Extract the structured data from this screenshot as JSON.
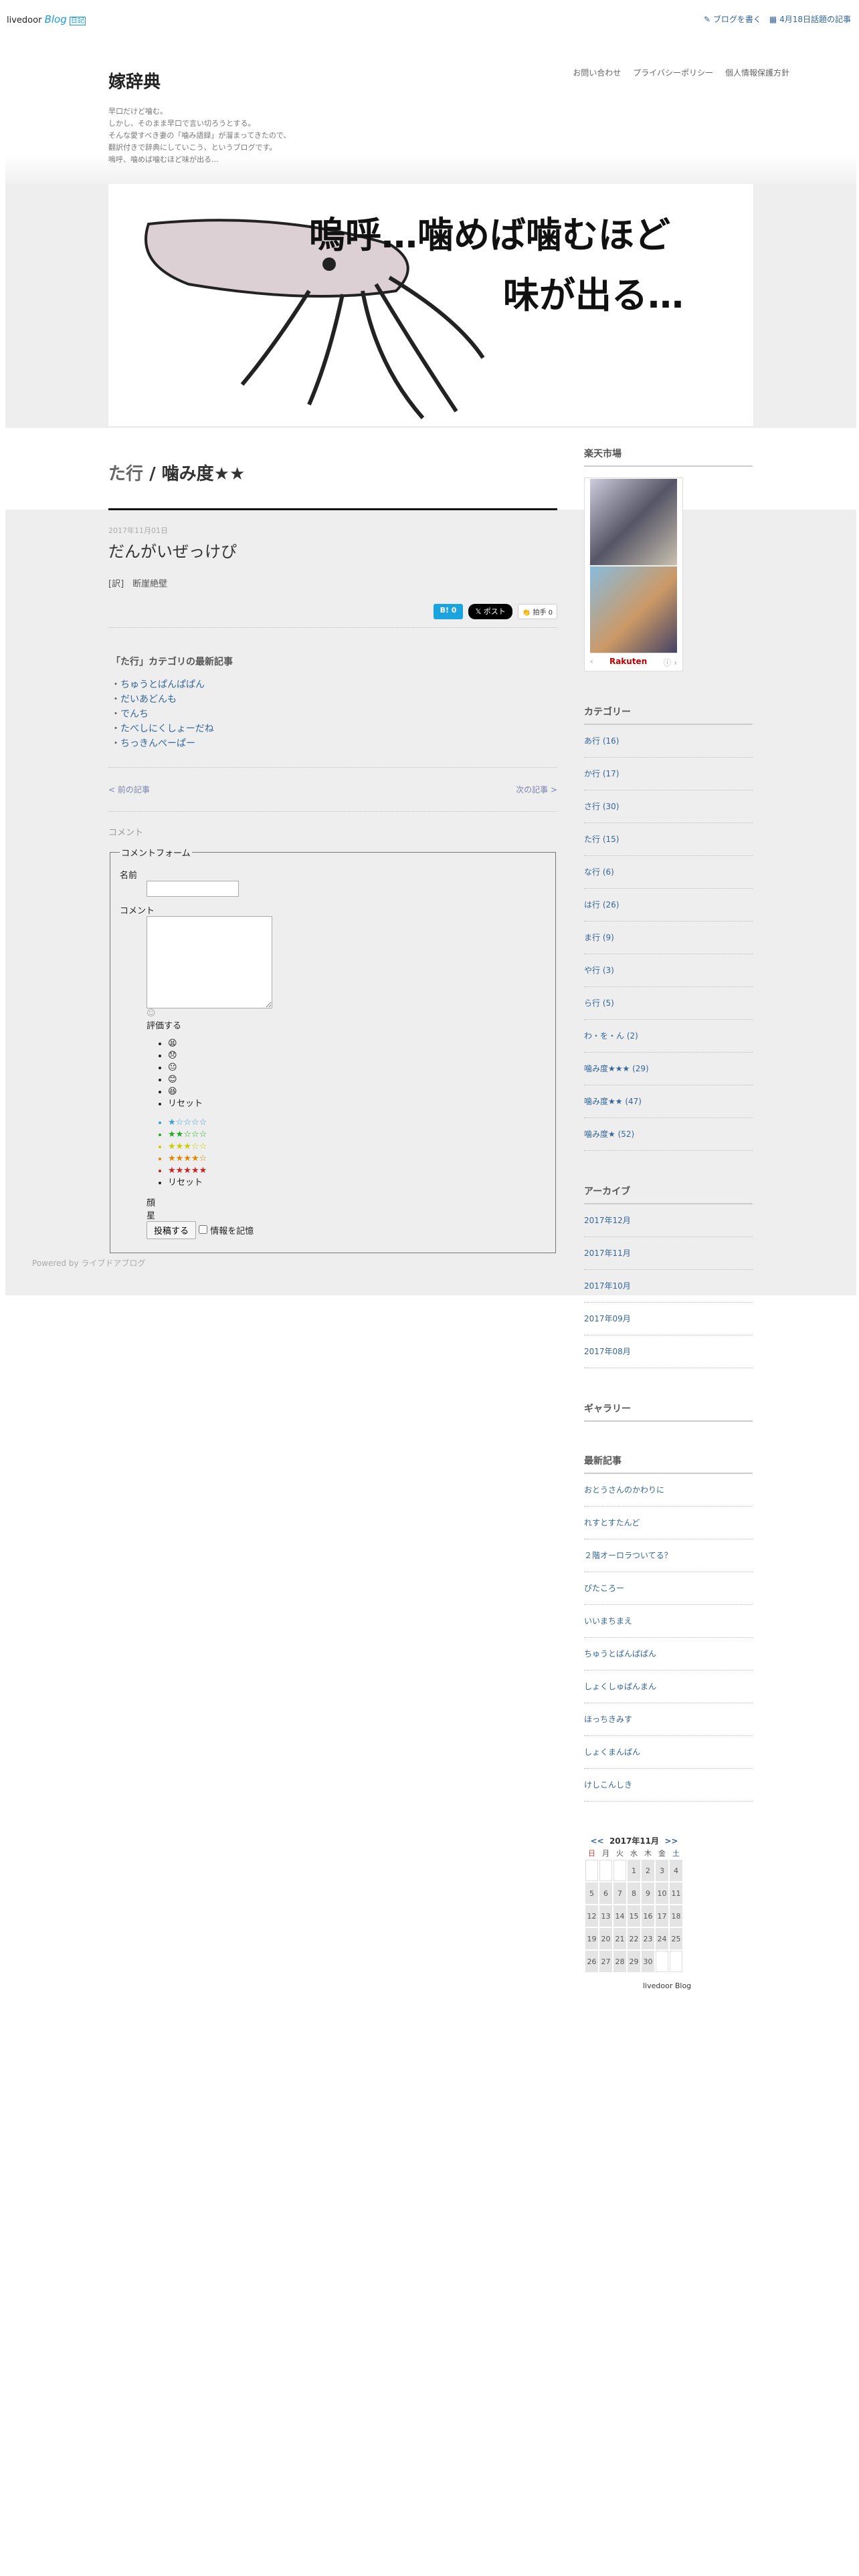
{
  "topbar": {
    "logo_brand": "livedoor",
    "logo_blog": "Blog",
    "logo_tag": "日記",
    "write": "ブログを書く",
    "topic": "4月18日話題の記事"
  },
  "header": {
    "title": "嫁辞典",
    "description": [
      "早口だけど噛む。",
      "しかし、そのまま早口で言い切ろうとする。",
      "そんな愛すべき妻の「噛み語録」が溜まってきたので、",
      "翻訳付きで辞典にしていこう、というブログです。",
      "嗚呼、噛めば噛むほど味が出る..."
    ],
    "nav": [
      "お問い合わせ",
      "プライバシーポリシー",
      "個人情報保護方針"
    ]
  },
  "banner": {
    "text_line1": "嗚呼…噛めば噛むほど",
    "text_line2": "味が出る…"
  },
  "main": {
    "category": "た行",
    "separator": "/",
    "subcategory": "噛み度★★",
    "date": "2017年11月01日",
    "title": "だんがいぜっけぴ",
    "body": "[訳]　断崖絶壁",
    "share": {
      "hatena": "B! 0",
      "x": "𝕏 ポスト",
      "clap": "拍手 0"
    },
    "related_title": "「た行」カテゴリの最新記事",
    "related": [
      "ちゅうとぱんぱぱん",
      "だいあどんも",
      "でんち",
      "たべしにくしょーだね",
      "ちっきんぺーぱー"
    ],
    "prev": "< 前の記事",
    "next": "次の記事 >",
    "comments_heading": "コメント",
    "form": {
      "legend": "コメントフォーム",
      "name_label": "名前",
      "comment_label": "コメント",
      "rate_label": "評価する",
      "faces": [
        "😫",
        "😞",
        "😐",
        "😊",
        "😆"
      ],
      "reset": "リセット",
      "stars": [
        "★☆☆☆☆",
        "★★☆☆☆",
        "★★★☆☆",
        "★★★★☆",
        "★★★★★"
      ],
      "face_label": "顔",
      "star_label": "星",
      "submit": "投稿する",
      "remember": "情報を記憶"
    }
  },
  "footer": {
    "powered": "Powered by ライブドアブログ"
  },
  "sidebar": {
    "rakuten_title": "楽天市場",
    "rakuten_logo": "Rakuten",
    "category_title": "カテゴリー",
    "categories": [
      "あ行 (16)",
      "か行 (17)",
      "さ行 (30)",
      "た行 (15)",
      "な行 (6)",
      "は行 (26)",
      "ま行 (9)",
      "や行 (3)",
      "ら行 (5)",
      "わ・を・ん (2)",
      "噛み度★★★ (29)",
      "噛み度★★ (47)",
      "噛み度★ (52)"
    ],
    "archive_title": "アーカイブ",
    "archives": [
      "2017年12月",
      "2017年11月",
      "2017年10月",
      "2017年09月",
      "2017年08月"
    ],
    "gallery_title": "ギャラリー",
    "recent_title": "最新記事",
    "recent": [
      "おとうさんのかわりに",
      "れすとすたんど",
      "２階オーロラついてる？",
      "ぴたころー",
      "いいまちまえ",
      "ちゅうとぱんぱぱん",
      "しょくしゅぱんまん",
      "ほっちきみす",
      "しょくまんぱん",
      "けしこんしき"
    ],
    "calendar": {
      "prev": "<<",
      "month": "2017年11月",
      "next": ">>",
      "weekdays": [
        "日",
        "月",
        "火",
        "水",
        "木",
        "金",
        "土"
      ],
      "days": [
        "",
        "",
        "",
        "1",
        "2",
        "3",
        "4",
        "5",
        "6",
        "7",
        "8",
        "9",
        "10",
        "11",
        "12",
        "13",
        "14",
        "15",
        "16",
        "17",
        "18",
        "19",
        "20",
        "21",
        "22",
        "23",
        "24",
        "25",
        "26",
        "27",
        "28",
        "29",
        "30",
        ""
      ]
    },
    "footer_logo": "livedoor Blog"
  }
}
